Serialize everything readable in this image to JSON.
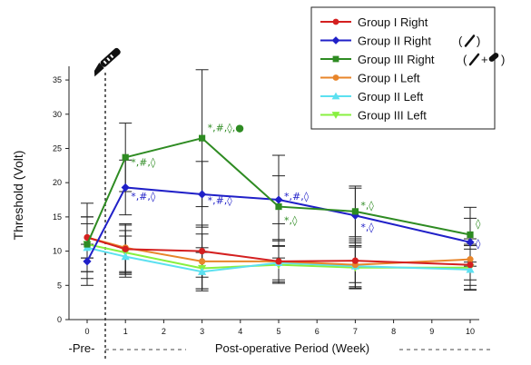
{
  "chart_data": {
    "type": "line",
    "title": "",
    "ylabel": "Threshold (Volt)",
    "xlabel": "Post-operative Period (Week)",
    "pre_label": "-Pre-",
    "x": [
      0,
      1,
      3,
      5,
      7,
      10
    ],
    "xticks": [
      "0",
      "1",
      "2",
      "3",
      "4",
      "5",
      "6",
      "7",
      "8",
      "9",
      "10"
    ],
    "ylim": [
      0,
      37
    ],
    "yticks": [
      "0",
      "5",
      "10",
      "15",
      "20",
      "25",
      "30",
      "35"
    ],
    "grid": false,
    "legend_position": "top-right",
    "series": [
      {
        "name": "Group I Right",
        "color": "#d42020",
        "marker": "circle",
        "values": [
          12.0,
          10.3,
          10.0,
          8.5,
          8.6,
          8.0
        ],
        "error": [
          3.0,
          3.5,
          3.8,
          3.2,
          3.2,
          3.0
        ]
      },
      {
        "name": "Group II Right",
        "color": "#2020c8",
        "marker": "diamond",
        "values": [
          8.5,
          19.3,
          18.3,
          17.5,
          15.2,
          11.3
        ],
        "error": [
          2.5,
          4.0,
          4.8,
          3.5,
          4.0,
          3.5
        ]
      },
      {
        "name": "Group III Right",
        "color": "#2e8b22",
        "marker": "square",
        "values": [
          11.0,
          23.7,
          26.5,
          16.5,
          15.8,
          12.4
        ],
        "error": [
          6.0,
          5.0,
          10.0,
          7.5,
          3.7,
          4.0
        ]
      },
      {
        "name": "Group I Left",
        "color": "#e8852a",
        "marker": "circle",
        "values": [
          12.0,
          10.5,
          8.5,
          8.5,
          8.0,
          8.8
        ],
        "error": [
          3.0,
          3.5,
          4.0,
          3.0,
          3.5,
          3.0
        ]
      },
      {
        "name": "Group II Left",
        "color": "#5ce0f0",
        "marker": "triangle",
        "values": [
          10.5,
          9.2,
          7.0,
          8.3,
          7.8,
          7.3
        ],
        "error": [
          3.5,
          3.0,
          2.8,
          2.5,
          3.0,
          3.0
        ]
      },
      {
        "name": "Group III Left",
        "color": "#88f040",
        "marker": "triangle-down",
        "values": [
          11.0,
          9.8,
          7.5,
          8.0,
          7.6,
          7.6
        ],
        "error": [
          4.0,
          3.2,
          3.0,
          2.7,
          3.0,
          3.2
        ]
      }
    ],
    "annotations": [
      {
        "x": 1,
        "y": 22.5,
        "text": "*,#,◊",
        "color": "#2e8b22"
      },
      {
        "x": 1,
        "y": 17.5,
        "text": "*,#,◊",
        "color": "#2020c8"
      },
      {
        "x": 3,
        "y": 27.5,
        "text": "*,#,◊,●",
        "color": "#2e8b22"
      },
      {
        "x": 3,
        "y": 16.9,
        "text": "*,#,◊",
        "color": "#2020c8"
      },
      {
        "x": 5,
        "y": 17.5,
        "text": "*,#,◊",
        "color": "#2020c8"
      },
      {
        "x": 5,
        "y": 14.0,
        "text": "*,◊",
        "color": "#2e8b22"
      },
      {
        "x": 7,
        "y": 16.2,
        "text": "*,◊",
        "color": "#2e8b22"
      },
      {
        "x": 7,
        "y": 13.0,
        "text": "*,◊",
        "color": "#2020c8"
      },
      {
        "x": 10,
        "y": 13.5,
        "text": "◊",
        "color": "#2e8b22"
      },
      {
        "x": 10,
        "y": 10.6,
        "text": "◊",
        "color": "#2020c8"
      }
    ]
  }
}
